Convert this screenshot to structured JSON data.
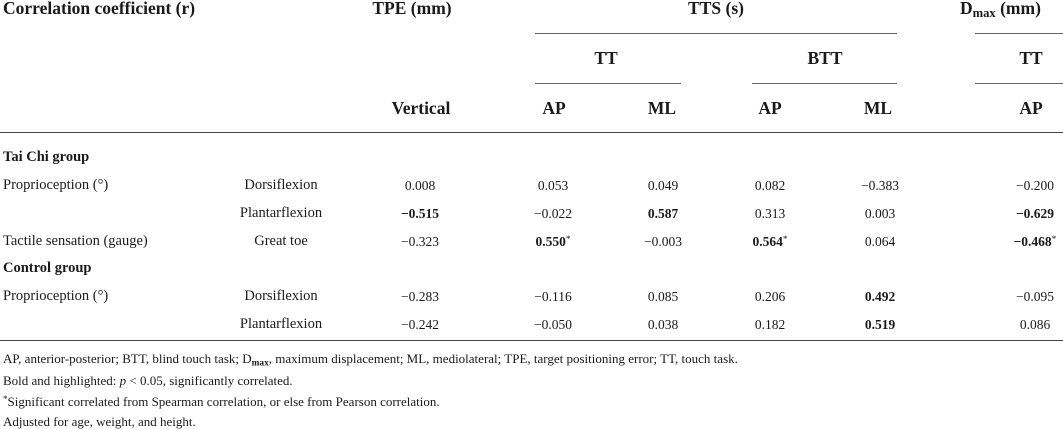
{
  "header": {
    "corr": "Correlation coefficient (r)",
    "tpe": "TPE (mm)",
    "tts": "TTS (s)",
    "dmax_main": "D",
    "dmax_sub": "max",
    "dmax_unit": " (mm)",
    "tt": "TT",
    "btt": "BTT",
    "tt2": "TT",
    "vertical": "Vertical",
    "ap1": "AP",
    "ml1": "ML",
    "ap2": "AP",
    "ml2": "ML",
    "ap3": "AP"
  },
  "rows": [
    {
      "type": "group",
      "label": "Tai Chi group"
    },
    {
      "type": "data",
      "label": "Proprioception (°)",
      "sub": "Dorsiflexion",
      "cells": [
        {
          "v": "0.008"
        },
        {
          "v": "0.053"
        },
        {
          "v": "0.049"
        },
        {
          "v": "0.082"
        },
        {
          "v": "−0.383"
        },
        {
          "v": "−0.200"
        }
      ]
    },
    {
      "type": "data",
      "label": "",
      "sub": "Plantarflexion",
      "cells": [
        {
          "v": "−0.515",
          "b": true
        },
        {
          "v": "−0.022"
        },
        {
          "v": "0.587",
          "b": true
        },
        {
          "v": "0.313"
        },
        {
          "v": "0.003"
        },
        {
          "v": "−0.629",
          "b": true
        }
      ]
    },
    {
      "type": "data",
      "label": "Tactile sensation (gauge)",
      "sub": "Great toe",
      "cells": [
        {
          "v": "−0.323"
        },
        {
          "v": "0.550",
          "b": true,
          "s": "*"
        },
        {
          "v": "−0.003"
        },
        {
          "v": "0.564",
          "b": true,
          "s": "*"
        },
        {
          "v": "0.064"
        },
        {
          "v": "−0.468",
          "b": true,
          "s": "*"
        }
      ]
    },
    {
      "type": "group",
      "label": "Control group"
    },
    {
      "type": "data",
      "label": "Proprioception (°)",
      "sub": "Dorsiflexion",
      "cells": [
        {
          "v": "−0.283"
        },
        {
          "v": "−0.116"
        },
        {
          "v": "0.085"
        },
        {
          "v": "0.206"
        },
        {
          "v": "0.492",
          "b": true
        },
        {
          "v": "−0.095"
        }
      ]
    },
    {
      "type": "data",
      "label": "",
      "sub": "Plantarflexion",
      "cells": [
        {
          "v": "−0.242"
        },
        {
          "v": "−0.050"
        },
        {
          "v": "0.038"
        },
        {
          "v": "0.182"
        },
        {
          "v": "0.519",
          "b": true
        },
        {
          "v": "0.086"
        }
      ]
    }
  ],
  "footnotes": {
    "f1_pre": "AP, anterior-posterior; BTT, blind touch task; D",
    "f1_sub": "max",
    "f1_post": ", maximum displacement; ML, mediolateral; TPE, target positioning error; TT, touch task.",
    "f2_pre": "Bold and highlighted: ",
    "f2_p": "p",
    "f2_post": " < 0.05, significantly correlated.",
    "f3_star": "*",
    "f3_text": "Significant correlated from Spearman correlation, or else from Pearson correlation.",
    "f4": "Adjusted for age, weight, and height."
  }
}
